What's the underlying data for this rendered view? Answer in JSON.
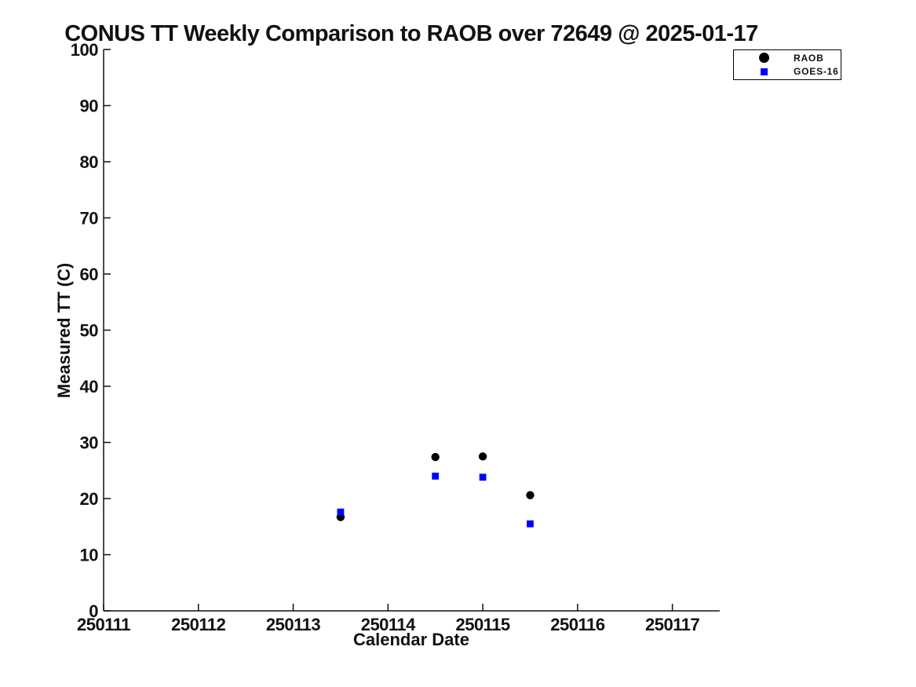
{
  "chart_data": {
    "type": "scatter",
    "title": "CONUS TT Weekly Comparison to RAOB over 72649 @ 2025-01-17",
    "xlabel": "Calendar Date",
    "ylabel": "Measured TT (C)",
    "xlim": [
      250111,
      250117.5
    ],
    "ylim": [
      0,
      100
    ],
    "x_ticks": [
      250111,
      250112,
      250113,
      250114,
      250115,
      250116,
      250117
    ],
    "y_ticks": [
      0,
      10,
      20,
      30,
      40,
      50,
      60,
      70,
      80,
      90,
      100
    ],
    "grid": false,
    "background_color": "#ffffff",
    "axis_color": "#111111",
    "legend_position": "top-right",
    "series": [
      {
        "name": "RAOB",
        "marker": "circle",
        "color": "#000000",
        "x": [
          250113.5,
          250114.5,
          250115.0,
          250115.5
        ],
        "y": [
          16.7,
          27.4,
          27.5,
          20.6
        ]
      },
      {
        "name": "GOES-16",
        "marker": "square",
        "color": "#0000ff",
        "x": [
          250113.5,
          250114.5,
          250115.0,
          250115.5
        ],
        "y": [
          17.6,
          24.0,
          23.8,
          15.5
        ]
      }
    ]
  }
}
